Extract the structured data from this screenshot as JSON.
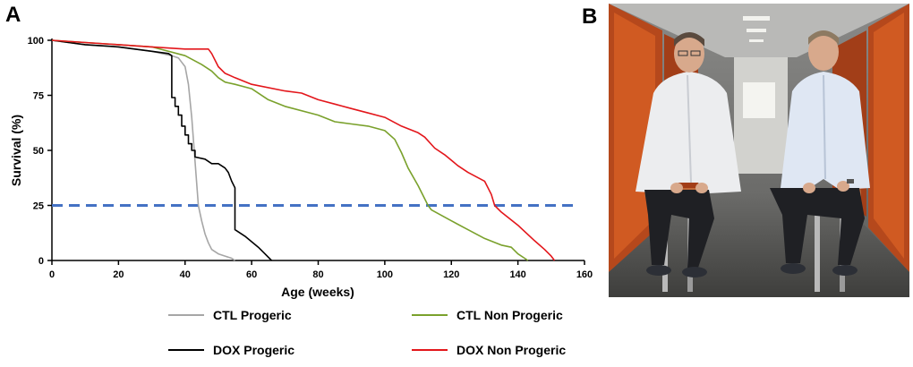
{
  "panel_a": {
    "label": "A"
  },
  "panel_b": {
    "label": "B"
  },
  "colors": {
    "ctl_progeric": "#a6a6a6",
    "dox_progeric": "#000000",
    "ctl_non_progeric": "#7aa12c",
    "dox_non_progeric": "#e3161b",
    "threshold": "#4472c4"
  },
  "chart_data": {
    "type": "line",
    "subtype": "kaplan-meier survival",
    "title": "",
    "xlabel": "Age (weeks)",
    "ylabel": "Survival (%)",
    "xlim": [
      0,
      160
    ],
    "ylim": [
      0,
      100
    ],
    "xticks": [
      0,
      20,
      40,
      60,
      80,
      100,
      120,
      140,
      160
    ],
    "yticks": [
      0,
      25,
      50,
      75,
      100
    ],
    "x_tick_labels": [
      "0",
      "20",
      "40",
      "60",
      "80",
      "100",
      "120",
      "140",
      "160"
    ],
    "y_tick_labels": [
      "0",
      "25",
      "50",
      "75",
      "100"
    ],
    "threshold_line": {
      "y": 25,
      "style": "dashed"
    },
    "series": [
      {
        "key": "ctl_progeric",
        "name": "CTL Progeric",
        "points": [
          [
            0,
            100
          ],
          [
            10,
            98
          ],
          [
            20,
            97
          ],
          [
            30,
            95
          ],
          [
            36,
            93
          ],
          [
            38,
            92
          ],
          [
            40,
            88
          ],
          [
            41,
            80
          ],
          [
            42,
            65
          ],
          [
            43,
            45
          ],
          [
            44,
            25
          ],
          [
            45,
            18
          ],
          [
            46,
            12
          ],
          [
            47,
            8
          ],
          [
            48,
            5
          ],
          [
            50,
            3
          ],
          [
            52,
            2
          ],
          [
            54,
            1
          ],
          [
            55,
            0
          ]
        ]
      },
      {
        "key": "dox_progeric",
        "name": "DOX Progeric",
        "points": [
          [
            0,
            100
          ],
          [
            10,
            98
          ],
          [
            20,
            97
          ],
          [
            30,
            95
          ],
          [
            35,
            94
          ],
          [
            36,
            93
          ],
          [
            36,
            74
          ],
          [
            37,
            74
          ],
          [
            37,
            70
          ],
          [
            38,
            70
          ],
          [
            38,
            66
          ],
          [
            39,
            66
          ],
          [
            39,
            61
          ],
          [
            40,
            61
          ],
          [
            40,
            57
          ],
          [
            41,
            57
          ],
          [
            41,
            53
          ],
          [
            42,
            53
          ],
          [
            42,
            50
          ],
          [
            43,
            50
          ],
          [
            43,
            47
          ],
          [
            46,
            46
          ],
          [
            48,
            44
          ],
          [
            50,
            44
          ],
          [
            52,
            42
          ],
          [
            53,
            40
          ],
          [
            54,
            36
          ],
          [
            55,
            33
          ],
          [
            55,
            14
          ],
          [
            58,
            11
          ],
          [
            62,
            6
          ],
          [
            64,
            3
          ],
          [
            66,
            0
          ]
        ]
      },
      {
        "key": "ctl_non_progeric",
        "name": "CTL Non Progeric",
        "points": [
          [
            0,
            100
          ],
          [
            10,
            99
          ],
          [
            20,
            98
          ],
          [
            30,
            97
          ],
          [
            40,
            93
          ],
          [
            45,
            89
          ],
          [
            48,
            86
          ],
          [
            50,
            83
          ],
          [
            52,
            81
          ],
          [
            55,
            80
          ],
          [
            60,
            78
          ],
          [
            65,
            73
          ],
          [
            70,
            70
          ],
          [
            80,
            66
          ],
          [
            85,
            63
          ],
          [
            90,
            62
          ],
          [
            95,
            61
          ],
          [
            100,
            59
          ],
          [
            103,
            55
          ],
          [
            105,
            49
          ],
          [
            107,
            42
          ],
          [
            110,
            34
          ],
          [
            112,
            28
          ],
          [
            113,
            25
          ],
          [
            114,
            23
          ],
          [
            120,
            18
          ],
          [
            125,
            14
          ],
          [
            130,
            10
          ],
          [
            135,
            7
          ],
          [
            138,
            6
          ],
          [
            140,
            3
          ],
          [
            142,
            1
          ],
          [
            143,
            0
          ]
        ]
      },
      {
        "key": "dox_non_progeric",
        "name": "DOX Non Progeric",
        "points": [
          [
            0,
            100
          ],
          [
            10,
            99
          ],
          [
            20,
            98
          ],
          [
            30,
            97
          ],
          [
            40,
            96
          ],
          [
            47,
            96
          ],
          [
            48,
            94
          ],
          [
            50,
            88
          ],
          [
            52,
            85
          ],
          [
            55,
            83
          ],
          [
            60,
            80
          ],
          [
            70,
            77
          ],
          [
            75,
            76
          ],
          [
            80,
            73
          ],
          [
            85,
            71
          ],
          [
            90,
            69
          ],
          [
            95,
            67
          ],
          [
            100,
            65
          ],
          [
            105,
            61
          ],
          [
            110,
            58
          ],
          [
            112,
            56
          ],
          [
            115,
            51
          ],
          [
            118,
            48
          ],
          [
            122,
            43
          ],
          [
            125,
            40
          ],
          [
            130,
            36
          ],
          [
            132,
            30
          ],
          [
            133,
            25
          ],
          [
            135,
            22
          ],
          [
            140,
            16
          ],
          [
            145,
            9
          ],
          [
            148,
            5
          ],
          [
            150,
            2
          ],
          [
            151,
            0
          ]
        ]
      }
    ],
    "legend": {
      "placement": "bottom",
      "entries": [
        {
          "key": "ctl_progeric",
          "label": "CTL Progeric"
        },
        {
          "key": "ctl_non_progeric",
          "label": "CTL Non Progeric"
        },
        {
          "key": "dox_progeric",
          "label": "DOX Progeric"
        },
        {
          "key": "dox_non_progeric",
          "label": "DOX Non Progeric"
        }
      ]
    }
  }
}
